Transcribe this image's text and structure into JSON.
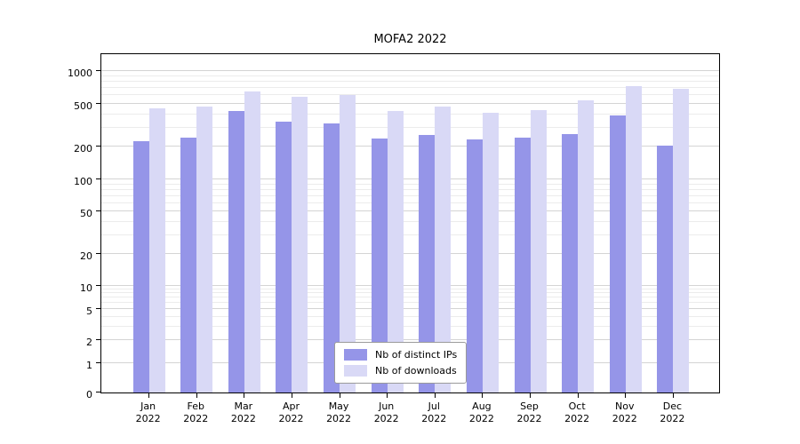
{
  "chart_data": {
    "type": "bar",
    "title": "MOFA2 2022",
    "year": "2022",
    "months": [
      "Jan",
      "Feb",
      "Mar",
      "Apr",
      "May",
      "Jun",
      "Jul",
      "Aug",
      "Sep",
      "Oct",
      "Nov",
      "Dec"
    ],
    "series": [
      {
        "name": "Nb of distinct IPs",
        "color": "#9595e8",
        "values": [
          225,
          245,
          430,
          340,
          330,
          240,
          255,
          235,
          245,
          260,
          390,
          205
        ]
      },
      {
        "name": "Nb of downloads",
        "color": "#d9d9f6",
        "values": [
          450,
          470,
          650,
          575,
          605,
          430,
          470,
          410,
          435,
          540,
          720,
          685
        ]
      }
    ],
    "yticks": [
      0,
      1,
      2,
      5,
      10,
      20,
      50,
      100,
      200,
      500,
      1000
    ],
    "yscale": "log (linear below 1)",
    "ylim": [
      0,
      1400
    ],
    "grid": true,
    "legend_position": "lower center"
  },
  "colors": {
    "background": "#ffffff",
    "axis": "#000000",
    "grid_major": "#d4d4d4",
    "grid_minor": "#ececec",
    "bar_distinct_ips": "#9595e8",
    "bar_downloads": "#d9d9f6"
  }
}
